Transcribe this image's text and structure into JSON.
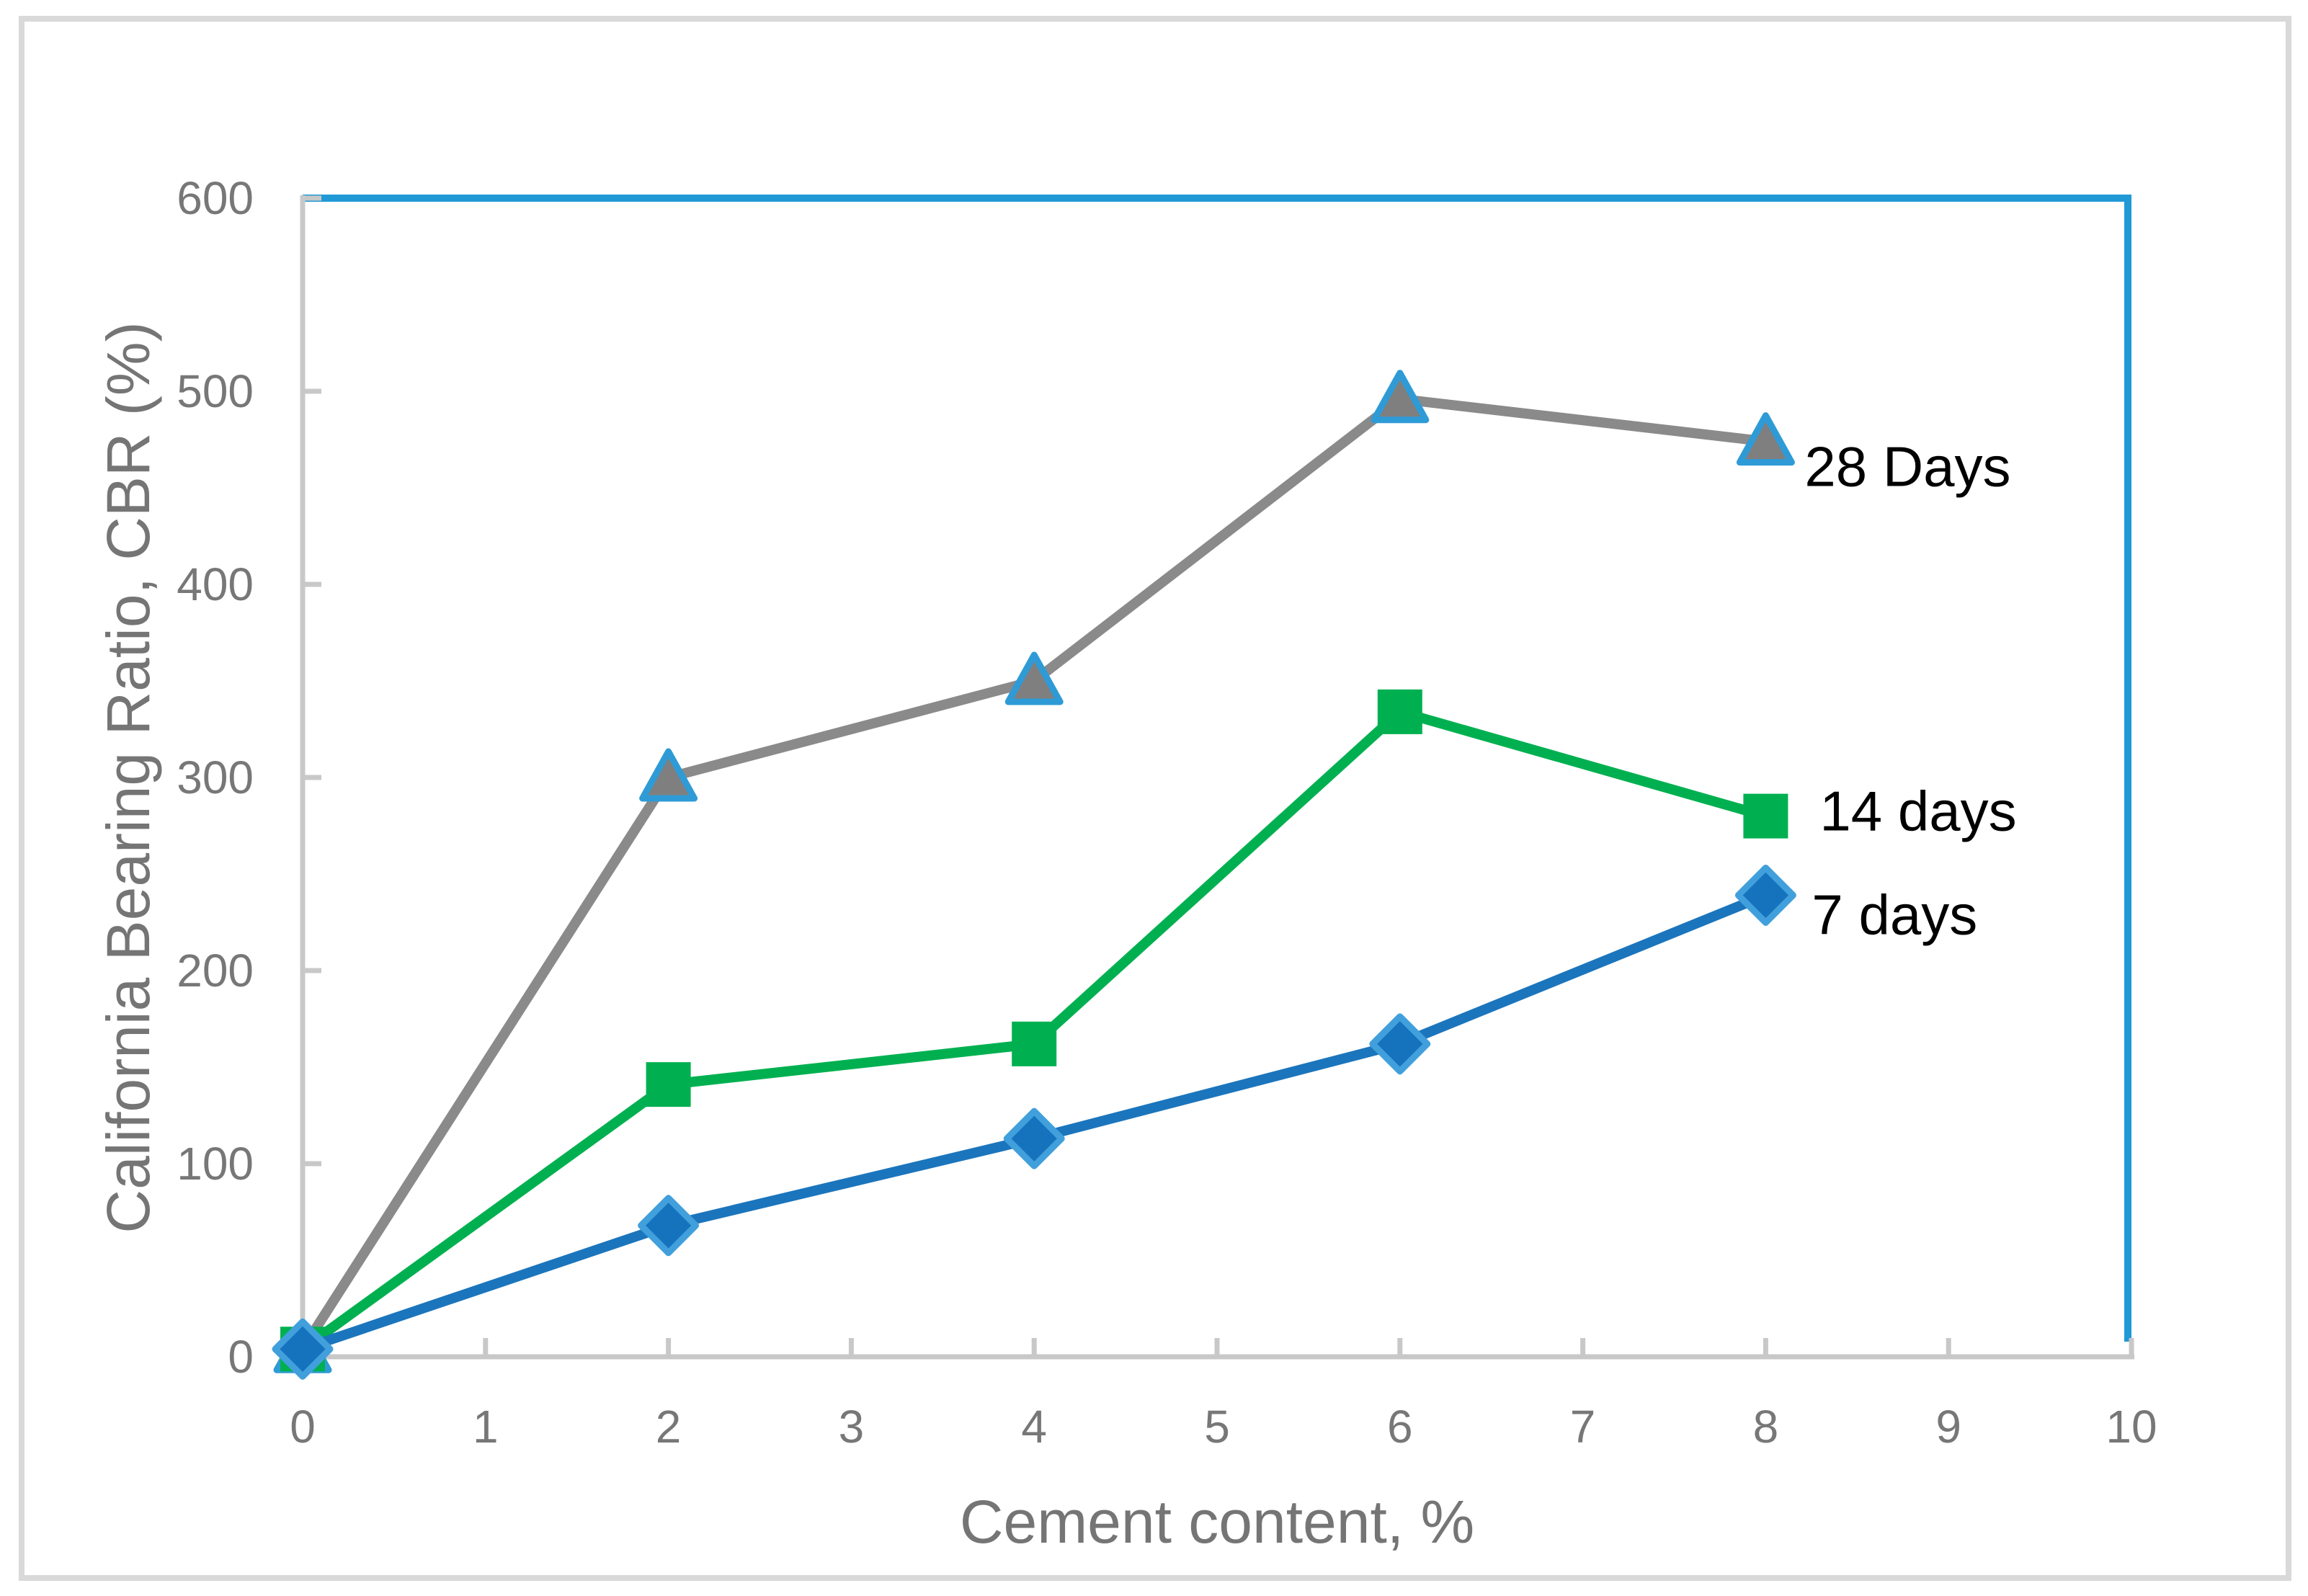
{
  "figure": {
    "background": "#ffffff",
    "outer_border_color": "#d9d9d9"
  },
  "chart_data": {
    "type": "line",
    "title": "",
    "xlabel": "Cement content, %",
    "ylabel": "California Bearing Ratio, CBR (%)",
    "xlim": [
      0,
      10
    ],
    "ylim": [
      0,
      600
    ],
    "x_ticks": [
      0,
      1,
      2,
      3,
      4,
      5,
      6,
      7,
      8,
      9,
      10
    ],
    "y_ticks": [
      0,
      100,
      200,
      300,
      400,
      500,
      600
    ],
    "grid": false,
    "legend_position": "labels-at-line-ends",
    "x": [
      0,
      2,
      4,
      6,
      8
    ],
    "series": [
      {
        "name": "28 Days",
        "values": [
          4,
          300,
          350,
          496,
          474
        ],
        "line_color": "#8a8a8a",
        "marker": "triangle",
        "marker_fill": "#7f7f7f",
        "marker_stroke": "#2e9bd6"
      },
      {
        "name": "14 days",
        "values": [
          4,
          141,
          162,
          334,
          280
        ],
        "line_color": "#00b050",
        "marker": "square",
        "marker_fill": "#00b050",
        "marker_stroke": "#00b050"
      },
      {
        "name": "7 days",
        "values": [
          4,
          68,
          113,
          162,
          239
        ],
        "line_color": "#1b75bc",
        "marker": "diamond",
        "marker_fill": "#1573be",
        "marker_stroke": "#41a0dc"
      }
    ],
    "axis_color": "#c8c8c8",
    "plot_border_color": "#2199d6",
    "tick_label_color": "#777777",
    "axis_title_color": "#757575",
    "series_label_color": "#000000"
  }
}
